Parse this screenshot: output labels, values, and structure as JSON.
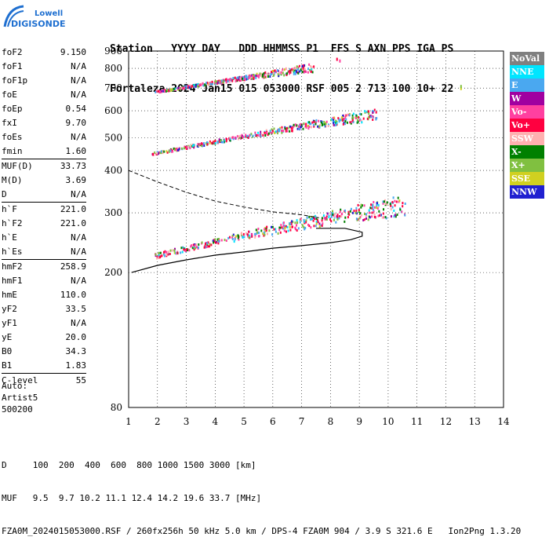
{
  "logo": {
    "line1": "Lowell",
    "line2": "DIGISONDE"
  },
  "header": {
    "labels": "Station   YYYY DAY   DDD HHMMSS P1  FFS S AXN PPS IGA PS",
    "values": "Fortaleza 2024 Jan15 015 053000 RSF 005 2 713 100 10+ 22"
  },
  "params": {
    "group1": [
      {
        "name": "foF2",
        "value": "9.150"
      },
      {
        "name": "foF1",
        "value": "N/A"
      },
      {
        "name": "foF1p",
        "value": "N/A"
      },
      {
        "name": "foE",
        "value": "N/A"
      },
      {
        "name": "foEp",
        "value": "0.54"
      },
      {
        "name": "fxI",
        "value": "9.70"
      },
      {
        "name": "foEs",
        "value": "N/A"
      },
      {
        "name": "fmin",
        "value": "1.60"
      }
    ],
    "group2": [
      {
        "name": "MUF(D)",
        "value": "33.73"
      },
      {
        "name": "M(D)",
        "value": "3.69"
      },
      {
        "name": "D",
        "value": "N/A"
      }
    ],
    "group3": [
      {
        "name": "h`F",
        "value": "221.0"
      },
      {
        "name": "h`F2",
        "value": "221.0"
      },
      {
        "name": "h`E",
        "value": "N/A"
      },
      {
        "name": "h`Es",
        "value": "N/A"
      }
    ],
    "group4": [
      {
        "name": "hmF2",
        "value": "258.9"
      },
      {
        "name": "hmF1",
        "value": "N/A"
      },
      {
        "name": "hmE",
        "value": "110.0"
      },
      {
        "name": "yF2",
        "value": "33.5"
      },
      {
        "name": "yF1",
        "value": "N/A"
      },
      {
        "name": "yE",
        "value": "20.0"
      },
      {
        "name": "B0",
        "value": "34.3"
      },
      {
        "name": "B1",
        "value": "1.83"
      }
    ],
    "group5": [
      {
        "name": "C-level",
        "value": "55"
      }
    ]
  },
  "auto": {
    "line1": "Auto:",
    "line2": "Artist5",
    "line3": "500200"
  },
  "legend": [
    {
      "label": "NoVal",
      "color": "#808080"
    },
    {
      "label": "NNE",
      "color": "#00e5ff"
    },
    {
      "label": "E",
      "color": "#4aa8f0"
    },
    {
      "label": "W",
      "color": "#a000a0"
    },
    {
      "label": "Vo-",
      "color": "#ff40a0"
    },
    {
      "label": "Vo+",
      "color": "#ff0040"
    },
    {
      "label": "SSW",
      "color": "#ffb0b0"
    },
    {
      "label": "X-",
      "color": "#008000"
    },
    {
      "label": "X+",
      "color": "#80c040"
    },
    {
      "label": "SSE",
      "color": "#d0d020"
    },
    {
      "label": "NNW",
      "color": "#2020d0"
    }
  ],
  "chart_data": {
    "type": "scatter",
    "xlim": [
      1,
      14
    ],
    "ylim": [
      80,
      900
    ],
    "x_ticks": [
      1,
      2,
      3,
      4,
      5,
      6,
      7,
      8,
      9,
      10,
      11,
      12,
      13,
      14
    ],
    "y_ticks": [
      80,
      200,
      300,
      400,
      500,
      600,
      700,
      800,
      900
    ],
    "grid": true,
    "traces": [
      {
        "name": "F2 first hop",
        "x_range": [
          1.9,
          10.6
        ],
        "y_start": 225,
        "y_end": 320
      },
      {
        "name": "F2 second hop",
        "x_range": [
          1.8,
          9.6
        ],
        "y_start": 450,
        "y_end": 590
      },
      {
        "name": "F2 third hop",
        "x_range": [
          1.9,
          7.4
        ],
        "y_start": 685,
        "y_end": 810
      }
    ],
    "profile_solid": [
      [
        1.1,
        200
      ],
      [
        2,
        210
      ],
      [
        3,
        218
      ],
      [
        4,
        225
      ],
      [
        5,
        230
      ],
      [
        6,
        236
      ],
      [
        7,
        240
      ],
      [
        8,
        245
      ],
      [
        8.7,
        250
      ],
      [
        9.1,
        256
      ],
      [
        9.1,
        263
      ],
      [
        8.5,
        270
      ],
      [
        7.5,
        270
      ]
    ],
    "profile_dashed": [
      [
        1,
        400
      ],
      [
        2,
        370
      ],
      [
        3,
        345
      ],
      [
        4,
        325
      ],
      [
        5,
        312
      ],
      [
        6,
        302
      ],
      [
        7,
        296
      ],
      [
        7.6,
        290
      ]
    ]
  },
  "footer": {
    "line1": "D     100  200  400  600  800 1000 1500 3000 [km]",
    "line2": "MUF   9.5  9.7 10.2 11.1 12.4 14.2 19.6 33.7 [MHz]",
    "line3": "FZA0M_2024015053000.RSF / 260fx256h 50 kHz 5.0 km / DPS-4 FZA0M 904 / 3.9 S 321.6 E   Ion2Png 1.3.20"
  }
}
